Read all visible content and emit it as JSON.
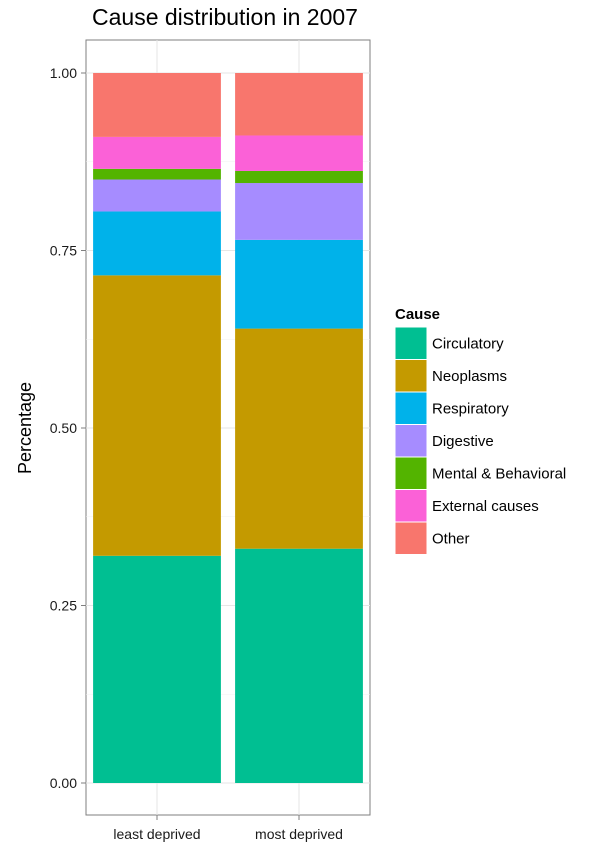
{
  "chart_data": {
    "type": "bar",
    "stacked": true,
    "title": "Cause distribution in 2007",
    "xlabel": "",
    "ylabel": "Percentage",
    "ylim": [
      0,
      1
    ],
    "yticks": [
      "0.00",
      "0.25",
      "0.50",
      "0.75",
      "1.00"
    ],
    "categories": [
      "least deprived",
      "most deprived"
    ],
    "grid": true,
    "legend": {
      "title": "Cause",
      "position": "right"
    },
    "series": [
      {
        "name": "Circulatory",
        "color": "#00BF92",
        "values": [
          0.32,
          0.33
        ]
      },
      {
        "name": "Neoplasms",
        "color": "#C49A00",
        "values": [
          0.395,
          0.31
        ]
      },
      {
        "name": "Respiratory",
        "color": "#00B2EA",
        "values": [
          0.09,
          0.125
        ]
      },
      {
        "name": "Digestive",
        "color": "#A68CFF",
        "values": [
          0.045,
          0.08
        ]
      },
      {
        "name": "Mental & Behavioral",
        "color": "#53B400",
        "values": [
          0.015,
          0.017
        ]
      },
      {
        "name": "External causes",
        "color": "#FB61D7",
        "values": [
          0.045,
          0.05
        ]
      },
      {
        "name": "Other",
        "color": "#F8766D",
        "values": [
          0.09,
          0.088
        ]
      }
    ]
  }
}
